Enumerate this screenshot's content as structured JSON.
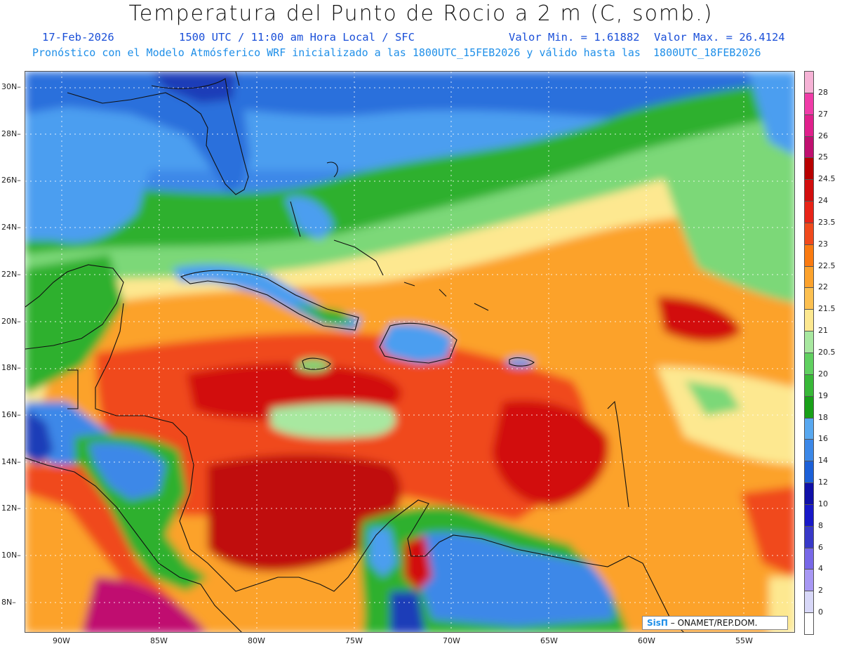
{
  "header": {
    "title": "Temperatura del Punto de Rocio a 2 m (C, somb.)",
    "date": "17-Feb-2026",
    "time": "1500 UTC / 11:00 am Hora Local / SFC",
    "vmin": "Valor Min. = 1.61882",
    "vmax": "Valor Max. = 26.4124",
    "model_line": "Pronóstico con el Modelo Atmósferico WRF inicializado a las 1800UTC_15FEB2026 y válido hasta las  1800UTC_18FEB2026"
  },
  "map": {
    "lon_ticks": [
      "90W",
      "85W",
      "80W",
      "75W",
      "70W",
      "65W",
      "60W",
      "55W"
    ],
    "lat_ticks": [
      "30N",
      "28N",
      "26N",
      "24N",
      "22N",
      "20N",
      "18N",
      "16N",
      "14N",
      "12N",
      "10N",
      "8N"
    ]
  },
  "colorbar": {
    "labels": [
      "28",
      "27",
      "26",
      "25",
      "24.5",
      "24",
      "23.5",
      "23",
      "22.5",
      "22",
      "21.5",
      "21",
      "20.5",
      "20",
      "19",
      "18",
      "16",
      "14",
      "12",
      "10",
      "8",
      "6",
      "4",
      "2",
      "0"
    ],
    "colors": [
      "#f6b3d6",
      "#f03ca8",
      "#e0208c",
      "#c01070",
      "#b80000",
      "#d20e0e",
      "#e82418",
      "#f04a1c",
      "#fa7a10",
      "#fca22c",
      "#fcc050",
      "#fde890",
      "#a8e8a0",
      "#60d060",
      "#38b838",
      "#18a018",
      "#58a8f0",
      "#3c88e8",
      "#1c60d8",
      "#1010a8",
      "#1818c8",
      "#3838c8",
      "#7868e8",
      "#a898f4",
      "#d8d8f8",
      "#ffffff"
    ],
    "top_color": "#f6b3d6"
  },
  "credit": {
    "brand": "SisΠ",
    "text": " – ONAMET/REP.DOM."
  }
}
